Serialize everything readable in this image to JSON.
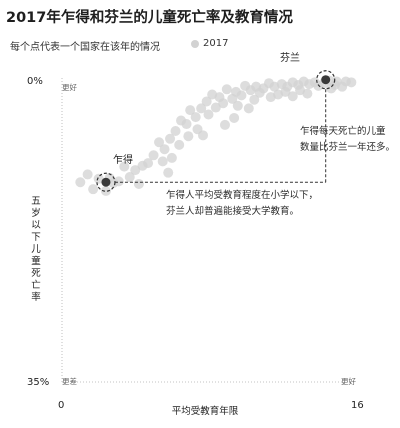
{
  "title": "2017年乍得和芬兰的儿童死亡率及教育情况",
  "subtitle": "每个点代表一个国家在该年的情况",
  "legend": {
    "label": "2017",
    "color": "#d2d2d2"
  },
  "chart_data": {
    "type": "scatter",
    "title": "2017年乍得和芬兰的儿童死亡率及教育情况",
    "xlabel": "平均受教育年限",
    "ylabel": "五岁以下儿童死亡率",
    "xlim": [
      0,
      16
    ],
    "ylim": [
      0,
      35
    ],
    "y_inverted": true,
    "x_ticks": [
      "0",
      "16"
    ],
    "y_ticks": [
      "0%",
      "35%"
    ],
    "corner_labels": {
      "top_left": "更好",
      "bottom_left": "更差",
      "bottom_right": "更好"
    },
    "series": [
      {
        "name": "2017",
        "points": [
          [
            15.0,
            0.4
          ],
          [
            15.8,
            0.5
          ],
          [
            14.9,
            0.8
          ],
          [
            15.5,
            0.4
          ],
          [
            14.3,
            0.6
          ],
          [
            14.6,
            0.3
          ],
          [
            13.8,
            0.5
          ],
          [
            14.0,
            0.9
          ],
          [
            13.5,
            0.7
          ],
          [
            13.2,
            0.4
          ],
          [
            15.3,
            1.0
          ],
          [
            14.7,
            1.2
          ],
          [
            12.9,
            0.8
          ],
          [
            12.6,
            0.5
          ],
          [
            12.3,
            1.0
          ],
          [
            12.0,
            0.7
          ],
          [
            13.0,
            1.4
          ],
          [
            12.2,
            1.6
          ],
          [
            11.6,
            1.0
          ],
          [
            11.3,
            0.6
          ],
          [
            11.0,
            1.2
          ],
          [
            11.8,
            1.9
          ],
          [
            10.6,
            1.0
          ],
          [
            10.8,
            1.7
          ],
          [
            10.3,
            1.4
          ],
          [
            10.0,
            0.9
          ],
          [
            9.8,
            2.0
          ],
          [
            11.4,
            2.2
          ],
          [
            10.5,
            2.5
          ],
          [
            9.5,
            1.6
          ],
          [
            9.3,
            2.4
          ],
          [
            9.0,
            1.3
          ],
          [
            8.8,
            2.9
          ],
          [
            9.6,
            3.2
          ],
          [
            8.6,
            2.2
          ],
          [
            8.4,
            3.4
          ],
          [
            8.2,
            1.9
          ],
          [
            7.9,
            2.7
          ],
          [
            7.6,
            3.5
          ],
          [
            8.0,
            4.2
          ],
          [
            7.3,
            4.5
          ],
          [
            7.0,
            3.7
          ],
          [
            6.8,
            5.3
          ],
          [
            7.4,
            5.9
          ],
          [
            6.5,
            4.9
          ],
          [
            6.2,
            6.1
          ],
          [
            6.9,
            6.7
          ],
          [
            5.9,
            7.0
          ],
          [
            6.4,
            7.7
          ],
          [
            5.6,
            8.2
          ],
          [
            5.3,
            7.4
          ],
          [
            5.0,
            8.9
          ],
          [
            6.0,
            9.2
          ],
          [
            5.5,
            9.6
          ],
          [
            4.7,
            9.8
          ],
          [
            4.4,
            10.1
          ],
          [
            4.0,
            10.6
          ],
          [
            3.7,
            11.4
          ],
          [
            3.4,
            10.2
          ],
          [
            3.1,
            11.9
          ],
          [
            4.2,
            12.2
          ],
          [
            2.8,
            12.1
          ],
          [
            8.9,
            5.4
          ],
          [
            9.4,
            4.6
          ],
          [
            10.2,
            3.5
          ],
          [
            12.6,
            2.1
          ],
          [
            13.4,
            1.8
          ],
          [
            7.7,
            6.6
          ],
          [
            5.8,
            10.9
          ],
          [
            2.6,
            11.5
          ],
          [
            2.0,
            11.6
          ],
          [
            1.4,
            11.1
          ],
          [
            1.0,
            12.0
          ],
          [
            1.7,
            12.8
          ],
          [
            2.4,
            13.0
          ]
        ]
      }
    ],
    "highlights": [
      {
        "name": "乍得",
        "x": 2.4,
        "y": 12.0
      },
      {
        "name": "芬兰",
        "x": 14.4,
        "y": 0.2
      }
    ],
    "annotations": [
      {
        "lines": [
          "乍得每天死亡的儿童",
          "数量比芬兰一年还多。"
        ]
      },
      {
        "lines": [
          "乍得人平均受教育程度在小学以下，",
          "芬兰人却普遍能接受大学教育。"
        ]
      }
    ]
  }
}
